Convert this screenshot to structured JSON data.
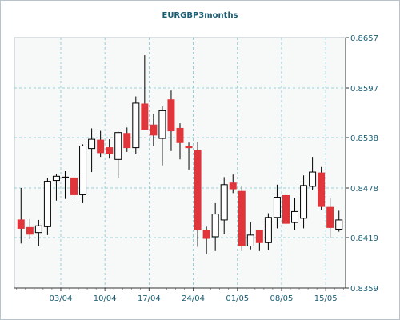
{
  "chart_data": {
    "type": "candlestick",
    "title": "EURGBP3months",
    "xlabel": "",
    "ylabel": "",
    "ylim": [
      0.8359,
      0.8657
    ],
    "y_ticks": [
      "0.8359",
      "0.8419",
      "0.8478",
      "0.8538",
      "0.8597",
      "0.8657"
    ],
    "x_ticks": [
      {
        "label": "03/04",
        "index": 4.5
      },
      {
        "label": "10/04",
        "index": 9.5
      },
      {
        "label": "17/04",
        "index": 14.5
      },
      {
        "label": "24/04",
        "index": 19.5
      },
      {
        "label": "01/05",
        "index": 24.5
      },
      {
        "label": "08/05",
        "index": 29.5
      },
      {
        "label": "15/05",
        "index": 34.5
      }
    ],
    "grid": true,
    "colors": {
      "up_body": "#ffffff",
      "down_body": "#e0353b",
      "outline": "#000000",
      "grid": "#7fc4cc",
      "axis_text": "#1a5c72",
      "plot_bg": "#f7f9f9",
      "frame": "#b8c2c8"
    },
    "candles": [
      {
        "open": 0.844,
        "high": 0.8478,
        "low": 0.8412,
        "close": 0.843
      },
      {
        "open": 0.8431,
        "high": 0.8441,
        "low": 0.8417,
        "close": 0.8423
      },
      {
        "open": 0.8425,
        "high": 0.844,
        "low": 0.8409,
        "close": 0.8433
      },
      {
        "open": 0.8432,
        "high": 0.849,
        "low": 0.8422,
        "close": 0.8486
      },
      {
        "open": 0.8487,
        "high": 0.8495,
        "low": 0.8463,
        "close": 0.8492
      },
      {
        "open": 0.849,
        "high": 0.8498,
        "low": 0.8465,
        "close": 0.8491
      },
      {
        "open": 0.849,
        "high": 0.8495,
        "low": 0.8465,
        "close": 0.847
      },
      {
        "open": 0.847,
        "high": 0.853,
        "low": 0.846,
        "close": 0.8528
      },
      {
        "open": 0.8525,
        "high": 0.8549,
        "low": 0.8497,
        "close": 0.8536
      },
      {
        "open": 0.8535,
        "high": 0.8546,
        "low": 0.8515,
        "close": 0.852
      },
      {
        "open": 0.8526,
        "high": 0.8536,
        "low": 0.8513,
        "close": 0.8519
      },
      {
        "open": 0.8512,
        "high": 0.8545,
        "low": 0.849,
        "close": 0.8544
      },
      {
        "open": 0.8543,
        "high": 0.855,
        "low": 0.8521,
        "close": 0.8526
      },
      {
        "open": 0.8526,
        "high": 0.8587,
        "low": 0.8518,
        "close": 0.8579
      },
      {
        "open": 0.8578,
        "high": 0.8636,
        "low": 0.855,
        "close": 0.8548
      },
      {
        "open": 0.8553,
        "high": 0.8566,
        "low": 0.8528,
        "close": 0.8541
      },
      {
        "open": 0.8537,
        "high": 0.8575,
        "low": 0.8505,
        "close": 0.857
      },
      {
        "open": 0.8583,
        "high": 0.8594,
        "low": 0.8522,
        "close": 0.8546
      },
      {
        "open": 0.8549,
        "high": 0.8555,
        "low": 0.8512,
        "close": 0.8532
      },
      {
        "open": 0.8528,
        "high": 0.8532,
        "low": 0.85,
        "close": 0.8526
      },
      {
        "open": 0.8523,
        "high": 0.8533,
        "low": 0.8408,
        "close": 0.8428
      },
      {
        "open": 0.8428,
        "high": 0.8432,
        "low": 0.8399,
        "close": 0.8418
      },
      {
        "open": 0.842,
        "high": 0.846,
        "low": 0.8403,
        "close": 0.8447
      },
      {
        "open": 0.844,
        "high": 0.8491,
        "low": 0.8423,
        "close": 0.8482
      },
      {
        "open": 0.8484,
        "high": 0.8494,
        "low": 0.8472,
        "close": 0.8477
      },
      {
        "open": 0.8474,
        "high": 0.848,
        "low": 0.8403,
        "close": 0.8409
      },
      {
        "open": 0.8409,
        "high": 0.8438,
        "low": 0.8405,
        "close": 0.8422
      },
      {
        "open": 0.8428,
        "high": 0.8428,
        "low": 0.8403,
        "close": 0.8413
      },
      {
        "open": 0.8413,
        "high": 0.8448,
        "low": 0.8404,
        "close": 0.8443
      },
      {
        "open": 0.8443,
        "high": 0.8482,
        "low": 0.843,
        "close": 0.8467
      },
      {
        "open": 0.8469,
        "high": 0.8473,
        "low": 0.8434,
        "close": 0.8436
      },
      {
        "open": 0.8437,
        "high": 0.8466,
        "low": 0.8428,
        "close": 0.845
      },
      {
        "open": 0.8442,
        "high": 0.8493,
        "low": 0.843,
        "close": 0.8481
      },
      {
        "open": 0.848,
        "high": 0.8515,
        "low": 0.8476,
        "close": 0.8497
      },
      {
        "open": 0.8496,
        "high": 0.8503,
        "low": 0.8452,
        "close": 0.8456
      },
      {
        "open": 0.8455,
        "high": 0.8466,
        "low": 0.8419,
        "close": 0.8431
      },
      {
        "open": 0.8429,
        "high": 0.8451,
        "low": 0.8426,
        "close": 0.844
      }
    ]
  }
}
